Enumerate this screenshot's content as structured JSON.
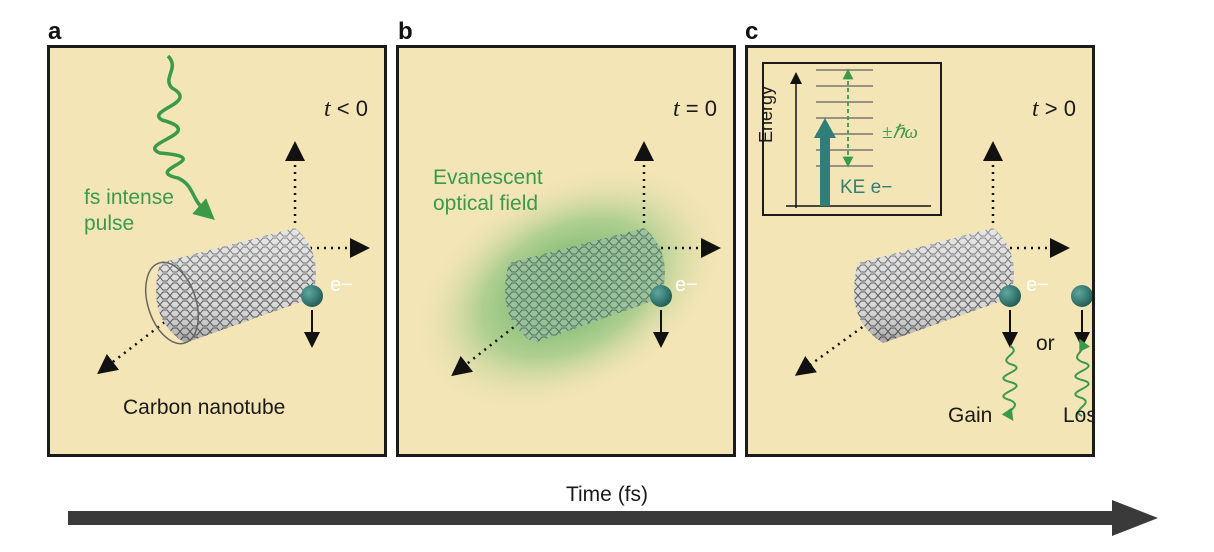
{
  "panels": [
    {
      "letter": "a",
      "time_var": "t",
      "time_rel": " < 0",
      "pulse_label": [
        "fs intense",
        "pulse"
      ],
      "tube_label": "Carbon nanotube",
      "electron": "e−"
    },
    {
      "letter": "b",
      "time_var": "t",
      "time_rel": " = 0",
      "field_label": [
        "Evanescent",
        "optical field"
      ],
      "electron": "e−"
    },
    {
      "letter": "c",
      "time_var": "t",
      "time_rel": " > 0",
      "inset": {
        "axis": "Energy",
        "arrow_label": "KE e−",
        "quantum": "±ℏω"
      },
      "electron": "e−",
      "or": "or",
      "gain": "Gain",
      "loss": "Loss"
    }
  ],
  "time_axis": "Time (fs)",
  "colors": {
    "panel_bg": "#f4e5b6",
    "green": "#3a9a4a",
    "teal": "#2f7e77",
    "dark": "#1b1b1b"
  }
}
